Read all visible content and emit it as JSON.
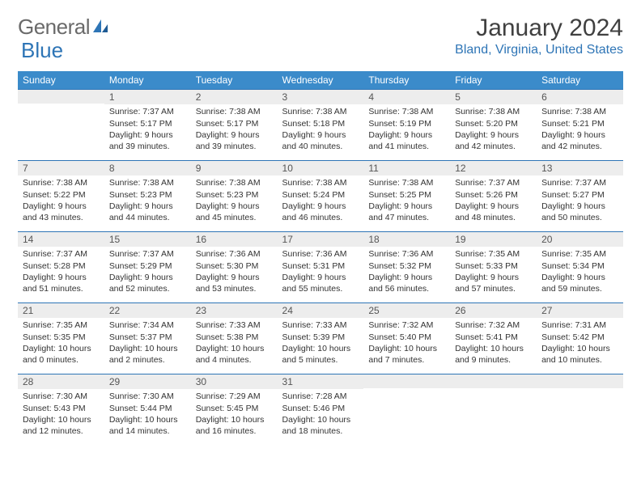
{
  "logo": {
    "text1": "General",
    "text2": "Blue"
  },
  "title": "January 2024",
  "location": "Bland, Virginia, United States",
  "colors": {
    "header_bg": "#3b8bca",
    "header_text": "#ffffff",
    "accent": "#2e75b6",
    "daynum_bg": "#ededed",
    "body_text": "#333333",
    "logo_gray": "#6a6a6a"
  },
  "weekdays": [
    "Sunday",
    "Monday",
    "Tuesday",
    "Wednesday",
    "Thursday",
    "Friday",
    "Saturday"
  ],
  "weeks": [
    [
      {
        "n": "",
        "lines": []
      },
      {
        "n": "1",
        "lines": [
          "Sunrise: 7:37 AM",
          "Sunset: 5:17 PM",
          "Daylight: 9 hours and 39 minutes."
        ]
      },
      {
        "n": "2",
        "lines": [
          "Sunrise: 7:38 AM",
          "Sunset: 5:17 PM",
          "Daylight: 9 hours and 39 minutes."
        ]
      },
      {
        "n": "3",
        "lines": [
          "Sunrise: 7:38 AM",
          "Sunset: 5:18 PM",
          "Daylight: 9 hours and 40 minutes."
        ]
      },
      {
        "n": "4",
        "lines": [
          "Sunrise: 7:38 AM",
          "Sunset: 5:19 PM",
          "Daylight: 9 hours and 41 minutes."
        ]
      },
      {
        "n": "5",
        "lines": [
          "Sunrise: 7:38 AM",
          "Sunset: 5:20 PM",
          "Daylight: 9 hours and 42 minutes."
        ]
      },
      {
        "n": "6",
        "lines": [
          "Sunrise: 7:38 AM",
          "Sunset: 5:21 PM",
          "Daylight: 9 hours and 42 minutes."
        ]
      }
    ],
    [
      {
        "n": "7",
        "lines": [
          "Sunrise: 7:38 AM",
          "Sunset: 5:22 PM",
          "Daylight: 9 hours and 43 minutes."
        ]
      },
      {
        "n": "8",
        "lines": [
          "Sunrise: 7:38 AM",
          "Sunset: 5:23 PM",
          "Daylight: 9 hours and 44 minutes."
        ]
      },
      {
        "n": "9",
        "lines": [
          "Sunrise: 7:38 AM",
          "Sunset: 5:23 PM",
          "Daylight: 9 hours and 45 minutes."
        ]
      },
      {
        "n": "10",
        "lines": [
          "Sunrise: 7:38 AM",
          "Sunset: 5:24 PM",
          "Daylight: 9 hours and 46 minutes."
        ]
      },
      {
        "n": "11",
        "lines": [
          "Sunrise: 7:38 AM",
          "Sunset: 5:25 PM",
          "Daylight: 9 hours and 47 minutes."
        ]
      },
      {
        "n": "12",
        "lines": [
          "Sunrise: 7:37 AM",
          "Sunset: 5:26 PM",
          "Daylight: 9 hours and 48 minutes."
        ]
      },
      {
        "n": "13",
        "lines": [
          "Sunrise: 7:37 AM",
          "Sunset: 5:27 PM",
          "Daylight: 9 hours and 50 minutes."
        ]
      }
    ],
    [
      {
        "n": "14",
        "lines": [
          "Sunrise: 7:37 AM",
          "Sunset: 5:28 PM",
          "Daylight: 9 hours and 51 minutes."
        ]
      },
      {
        "n": "15",
        "lines": [
          "Sunrise: 7:37 AM",
          "Sunset: 5:29 PM",
          "Daylight: 9 hours and 52 minutes."
        ]
      },
      {
        "n": "16",
        "lines": [
          "Sunrise: 7:36 AM",
          "Sunset: 5:30 PM",
          "Daylight: 9 hours and 53 minutes."
        ]
      },
      {
        "n": "17",
        "lines": [
          "Sunrise: 7:36 AM",
          "Sunset: 5:31 PM",
          "Daylight: 9 hours and 55 minutes."
        ]
      },
      {
        "n": "18",
        "lines": [
          "Sunrise: 7:36 AM",
          "Sunset: 5:32 PM",
          "Daylight: 9 hours and 56 minutes."
        ]
      },
      {
        "n": "19",
        "lines": [
          "Sunrise: 7:35 AM",
          "Sunset: 5:33 PM",
          "Daylight: 9 hours and 57 minutes."
        ]
      },
      {
        "n": "20",
        "lines": [
          "Sunrise: 7:35 AM",
          "Sunset: 5:34 PM",
          "Daylight: 9 hours and 59 minutes."
        ]
      }
    ],
    [
      {
        "n": "21",
        "lines": [
          "Sunrise: 7:35 AM",
          "Sunset: 5:35 PM",
          "Daylight: 10 hours and 0 minutes."
        ]
      },
      {
        "n": "22",
        "lines": [
          "Sunrise: 7:34 AM",
          "Sunset: 5:37 PM",
          "Daylight: 10 hours and 2 minutes."
        ]
      },
      {
        "n": "23",
        "lines": [
          "Sunrise: 7:33 AM",
          "Sunset: 5:38 PM",
          "Daylight: 10 hours and 4 minutes."
        ]
      },
      {
        "n": "24",
        "lines": [
          "Sunrise: 7:33 AM",
          "Sunset: 5:39 PM",
          "Daylight: 10 hours and 5 minutes."
        ]
      },
      {
        "n": "25",
        "lines": [
          "Sunrise: 7:32 AM",
          "Sunset: 5:40 PM",
          "Daylight: 10 hours and 7 minutes."
        ]
      },
      {
        "n": "26",
        "lines": [
          "Sunrise: 7:32 AM",
          "Sunset: 5:41 PM",
          "Daylight: 10 hours and 9 minutes."
        ]
      },
      {
        "n": "27",
        "lines": [
          "Sunrise: 7:31 AM",
          "Sunset: 5:42 PM",
          "Daylight: 10 hours and 10 minutes."
        ]
      }
    ],
    [
      {
        "n": "28",
        "lines": [
          "Sunrise: 7:30 AM",
          "Sunset: 5:43 PM",
          "Daylight: 10 hours and 12 minutes."
        ]
      },
      {
        "n": "29",
        "lines": [
          "Sunrise: 7:30 AM",
          "Sunset: 5:44 PM",
          "Daylight: 10 hours and 14 minutes."
        ]
      },
      {
        "n": "30",
        "lines": [
          "Sunrise: 7:29 AM",
          "Sunset: 5:45 PM",
          "Daylight: 10 hours and 16 minutes."
        ]
      },
      {
        "n": "31",
        "lines": [
          "Sunrise: 7:28 AM",
          "Sunset: 5:46 PM",
          "Daylight: 10 hours and 18 minutes."
        ]
      },
      {
        "n": "",
        "lines": []
      },
      {
        "n": "",
        "lines": []
      },
      {
        "n": "",
        "lines": []
      }
    ]
  ]
}
